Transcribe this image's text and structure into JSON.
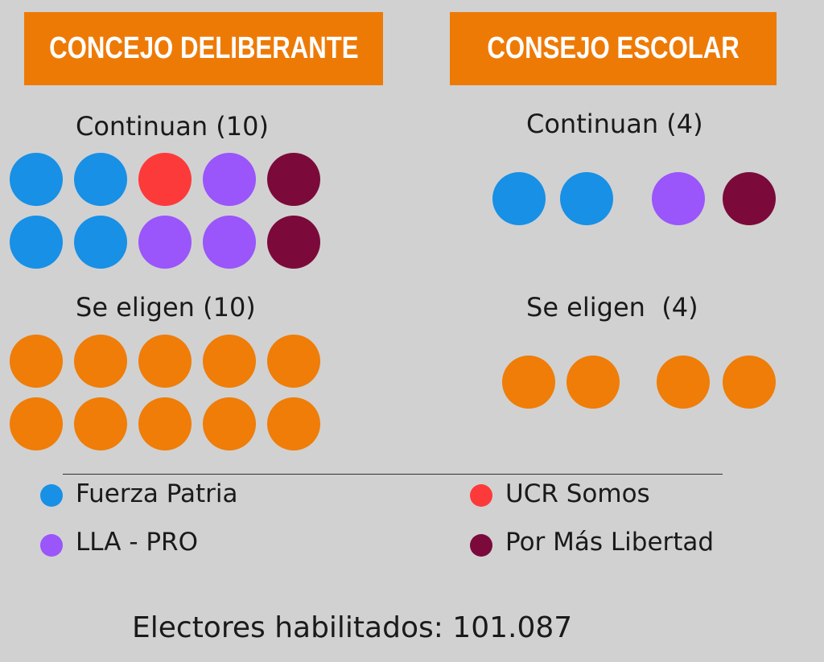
{
  "colors": {
    "fuerza_patria": "#1790e6",
    "ucr_somos": "#fd3a3a",
    "lla_pro": "#9a55fb",
    "por_mas_libertad": "#7b0a3b",
    "se_eligen": "#ef7d08",
    "banner": "#ee7a06"
  },
  "banners": {
    "left": "CONCEJO DELIBERANTE",
    "right": "CONSEJO ESCOLAR"
  },
  "headings": {
    "left_continuan": "Continuan (10)",
    "left_se_eligen": "Se eligen (10)",
    "right_continuan": "Continuan (4)",
    "right_se_eligen": "Se eligen  (4)"
  },
  "legend": [
    {
      "label": "Fuerza Patria",
      "color_key": "fuerza_patria"
    },
    {
      "label": "UCR Somos",
      "color_key": "ucr_somos"
    },
    {
      "label": "LLA - PRO",
      "color_key": "lla_pro"
    },
    {
      "label": "Por Más Libertad",
      "color_key": "por_mas_libertad"
    }
  ],
  "footer": "Electores habilitados: 101.087",
  "chart_data": {
    "type": "dot-matrix",
    "groups": [
      {
        "name": "CONCEJO DELIBERANTE",
        "continuan_total": 10,
        "continuan": [
          "fuerza_patria",
          "fuerza_patria",
          "ucr_somos",
          "lla_pro",
          "por_mas_libertad",
          "fuerza_patria",
          "fuerza_patria",
          "lla_pro",
          "lla_pro",
          "por_mas_libertad"
        ],
        "se_eligen_total": 10
      },
      {
        "name": "CONSEJO ESCOLAR",
        "continuan_total": 4,
        "continuan": [
          "fuerza_patria",
          "fuerza_patria",
          "lla_pro",
          "por_mas_libertad"
        ],
        "se_eligen_total": 4
      }
    ]
  }
}
